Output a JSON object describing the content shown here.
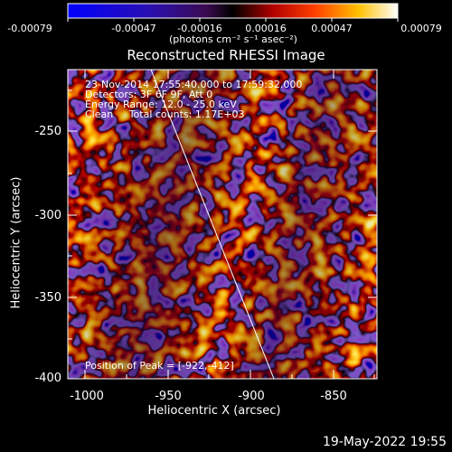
{
  "colorbar": {
    "ticks": [
      "-0.00079",
      "-0.00047",
      "-0.00016",
      "0.00016",
      "0.00047",
      "0.00079"
    ],
    "unit_html": "(photons cm⁻² s⁻¹ asec⁻²)"
  },
  "plot": {
    "title": "Reconstructed RHESSI Image",
    "xlabel": "Heliocentric X (arcsec)",
    "ylabel": "Heliocentric Y (arcsec)",
    "xticks": [
      "-1000",
      "-950",
      "-900",
      "-850"
    ],
    "yticks": [
      "-250",
      "-300",
      "-350",
      "-400"
    ]
  },
  "annotations": {
    "time": "23-Nov-2014 17:55:40.000 to 17:59:32.000",
    "detectors": "Detectors: 3F 6F 9F, Att 0",
    "energy": "Energy Range: 12.0 - 25.0 keV",
    "clean": "Clean     Total counts: 1.17E+03",
    "peak": "Position of Peak = [-922,-412]"
  },
  "footer": {
    "date": "19-May-2022 19:55"
  },
  "chart_data": {
    "type": "heatmap",
    "title": "Reconstructed RHESSI Image",
    "xlabel": "Heliocentric X (arcsec)",
    "ylabel": "Heliocentric Y (arcsec)",
    "xlim": [
      -1010,
      -818
    ],
    "ylim": [
      -402,
      -212
    ],
    "colorbar_range": [
      -0.00079,
      0.00079
    ]
  }
}
